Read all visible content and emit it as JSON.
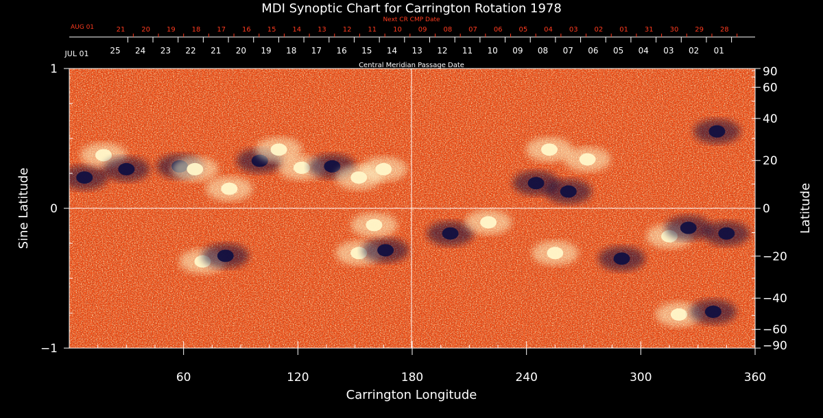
{
  "chart_data": {
    "type": "heatmap",
    "title": "MDI Synoptic Chart for Carrington Rotation 1978",
    "xlabel": "Carrington Longitude",
    "ylabel_left": "Sine Latitude",
    "ylabel_right": "Latitude",
    "xlim": [
      0,
      360
    ],
    "ylim": [
      -1,
      1
    ],
    "x_ticks": [
      "60",
      "120",
      "180",
      "240",
      "300",
      "360"
    ],
    "x_tick_values": [
      60,
      120,
      180,
      240,
      300,
      360
    ],
    "y_left_ticks": [
      "1",
      "0",
      "−1"
    ],
    "y_left_tick_values": [
      1,
      0,
      -1
    ],
    "y_right_ticks": [
      "90",
      "60",
      "40",
      "20",
      "0",
      "−20",
      "−40",
      "−60",
      "−90"
    ],
    "y_right_tick_values": [
      90,
      60,
      40,
      20,
      0,
      -20,
      -40,
      -60,
      -90
    ],
    "cmp_label": "Central Meridian Passage Date",
    "cmp_start_label": "JUL 01",
    "cmp_dates": [
      "25",
      "24",
      "23",
      "22",
      "21",
      "20",
      "19",
      "18",
      "17",
      "16",
      "15",
      "14",
      "13",
      "12",
      "11",
      "10",
      "09",
      "08",
      "07",
      "06",
      "05",
      "04",
      "03",
      "02",
      "01"
    ],
    "next_label": "Next CR CMP Date",
    "next_start_label": "AUG 01",
    "next_dates": [
      "21",
      "20",
      "19",
      "18",
      "17",
      "16",
      "15",
      "14",
      "13",
      "12",
      "11",
      "10",
      "09",
      "08",
      "07",
      "06",
      "05",
      "04",
      "03",
      "02",
      "01",
      "31",
      "30",
      "29",
      "28"
    ],
    "colors": {
      "background": "#000000",
      "map_base": "#f04a12",
      "positive_field": "#fff6c8",
      "negative_field": "#121040",
      "axis": "#ffffff",
      "next_dates": "#ff3b1f"
    },
    "active_regions": [
      {
        "lon": 8,
        "sinlat": 0.22,
        "polarity": "negative"
      },
      {
        "lon": 18,
        "sinlat": 0.38,
        "polarity": "positive"
      },
      {
        "lon": 30,
        "sinlat": 0.28,
        "polarity": "negative"
      },
      {
        "lon": 58,
        "sinlat": 0.3,
        "polarity": "negative"
      },
      {
        "lon": 66,
        "sinlat": 0.28,
        "polarity": "positive"
      },
      {
        "lon": 84,
        "sinlat": 0.14,
        "polarity": "positive"
      },
      {
        "lon": 100,
        "sinlat": 0.34,
        "polarity": "negative"
      },
      {
        "lon": 110,
        "sinlat": 0.42,
        "polarity": "positive"
      },
      {
        "lon": 122,
        "sinlat": 0.29,
        "polarity": "positive"
      },
      {
        "lon": 138,
        "sinlat": 0.3,
        "polarity": "negative"
      },
      {
        "lon": 152,
        "sinlat": 0.22,
        "polarity": "positive"
      },
      {
        "lon": 165,
        "sinlat": 0.28,
        "polarity": "positive"
      },
      {
        "lon": 70,
        "sinlat": -0.38,
        "polarity": "positive"
      },
      {
        "lon": 82,
        "sinlat": -0.34,
        "polarity": "negative"
      },
      {
        "lon": 152,
        "sinlat": -0.32,
        "polarity": "positive"
      },
      {
        "lon": 166,
        "sinlat": -0.3,
        "polarity": "negative"
      },
      {
        "lon": 160,
        "sinlat": -0.12,
        "polarity": "positive"
      },
      {
        "lon": 200,
        "sinlat": -0.18,
        "polarity": "negative"
      },
      {
        "lon": 220,
        "sinlat": -0.1,
        "polarity": "positive"
      },
      {
        "lon": 245,
        "sinlat": 0.18,
        "polarity": "negative"
      },
      {
        "lon": 252,
        "sinlat": 0.42,
        "polarity": "positive"
      },
      {
        "lon": 272,
        "sinlat": 0.35,
        "polarity": "positive"
      },
      {
        "lon": 262,
        "sinlat": 0.12,
        "polarity": "negative"
      },
      {
        "lon": 255,
        "sinlat": -0.32,
        "polarity": "positive"
      },
      {
        "lon": 290,
        "sinlat": -0.36,
        "polarity": "negative"
      },
      {
        "lon": 315,
        "sinlat": -0.2,
        "polarity": "positive"
      },
      {
        "lon": 325,
        "sinlat": -0.14,
        "polarity": "negative"
      },
      {
        "lon": 320,
        "sinlat": -0.76,
        "polarity": "positive"
      },
      {
        "lon": 338,
        "sinlat": -0.74,
        "polarity": "negative"
      },
      {
        "lon": 345,
        "sinlat": -0.18,
        "polarity": "negative"
      },
      {
        "lon": 340,
        "sinlat": 0.55,
        "polarity": "negative"
      }
    ]
  }
}
